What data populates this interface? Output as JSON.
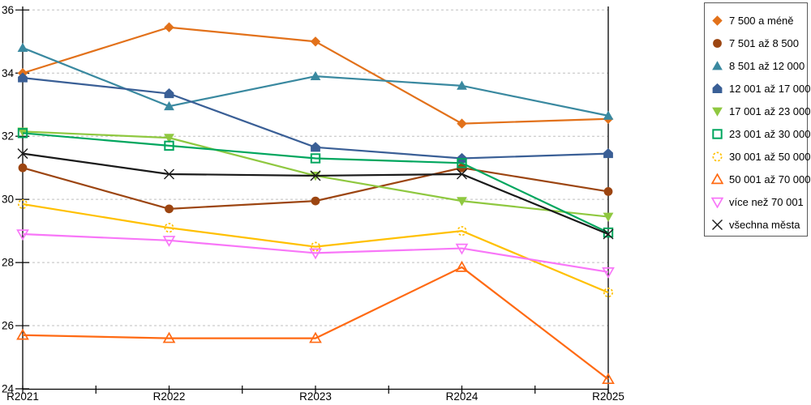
{
  "chart_data": {
    "type": "line",
    "title": "",
    "xlabel": "",
    "ylabel": "",
    "categories": [
      "R2021",
      "R2022",
      "R2023",
      "R2024",
      "R2025"
    ],
    "ylim": [
      24,
      36
    ],
    "yticks": [
      24,
      26,
      28,
      30,
      32,
      34,
      36
    ],
    "grid": "horizontal dashed",
    "legend_position": "right",
    "series": [
      {
        "name": "7 500 a méně",
        "marker": "diamond",
        "filled": true,
        "color": "#E2711A",
        "values": [
          34.0,
          35.45,
          35.0,
          32.4,
          32.55
        ]
      },
      {
        "name": "7 501 až 8 500",
        "marker": "circle",
        "filled": true,
        "color": "#9C4511",
        "values": [
          31.0,
          29.7,
          29.95,
          31.0,
          30.25
        ]
      },
      {
        "name": "8 501 až 12 000",
        "marker": "triangle-up",
        "filled": true,
        "color": "#3A89A0",
        "values": [
          34.8,
          32.95,
          33.9,
          33.6,
          32.65
        ]
      },
      {
        "name": "12 001 až 17 000",
        "marker": "pentagon",
        "filled": true,
        "color": "#3A5F96",
        "values": [
          33.85,
          33.35,
          31.65,
          31.3,
          31.45
        ]
      },
      {
        "name": "17 001 až 23 000",
        "marker": "triangle-down",
        "filled": true,
        "color": "#8FC840",
        "values": [
          32.15,
          31.95,
          30.75,
          29.95,
          29.45
        ]
      },
      {
        "name": "23 001 až 30 000",
        "marker": "square",
        "filled": false,
        "color": "#00A65E",
        "values": [
          32.1,
          31.7,
          31.3,
          31.15,
          28.95
        ]
      },
      {
        "name": "30 001 až 50 000",
        "marker": "circle-dashed",
        "filled": false,
        "color": "#FFC000",
        "values": [
          29.85,
          29.1,
          28.5,
          29.0,
          27.05
        ]
      },
      {
        "name": "50 001 až 70 000",
        "marker": "triangle-up",
        "filled": false,
        "color": "#FF6A13",
        "values": [
          25.7,
          25.6,
          25.6,
          27.85,
          24.3
        ]
      },
      {
        "name": "více než 70 001",
        "marker": "triangle-down",
        "filled": false,
        "color": "#F876F8",
        "values": [
          28.9,
          28.7,
          28.3,
          28.45,
          27.7
        ]
      },
      {
        "name": "všechna města",
        "marker": "x",
        "filled": false,
        "color": "#1A1A1A",
        "values": [
          31.45,
          30.8,
          30.75,
          30.8,
          28.9
        ]
      }
    ]
  },
  "axes": {
    "x_tick_labels": [
      "R2021",
      "R2022",
      "R2023",
      "R2024",
      "R2025"
    ],
    "y_tick_labels": [
      "24",
      "26",
      "28",
      "30",
      "32",
      "34",
      "36"
    ]
  },
  "colors": {
    "gridline": "#BFBFBF",
    "axis": "#000000",
    "legend_border": "#595959",
    "background": "#FFFFFF",
    "tick_label": "#000000"
  }
}
